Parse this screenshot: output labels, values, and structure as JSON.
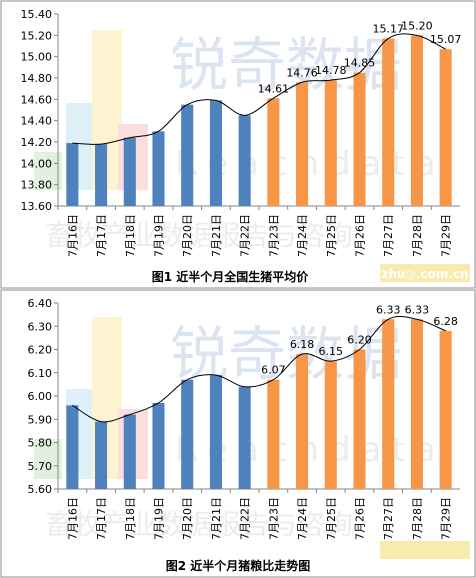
{
  "chart_data": [
    {
      "type": "bar",
      "title": "图1 近半个月全国生猪平均价",
      "categories": [
        "7月16日",
        "7月17日",
        "7月18日",
        "7月19日",
        "7月20日",
        "7月21日",
        "7月22日",
        "7月23日",
        "7月24日",
        "7月25日",
        "7月26日",
        "7月27日",
        "7月28日",
        "7月29日"
      ],
      "values": [
        14.19,
        14.18,
        14.24,
        14.3,
        14.55,
        14.59,
        14.45,
        14.61,
        14.76,
        14.78,
        14.85,
        15.17,
        15.2,
        15.07
      ],
      "data_labels": [
        "",
        "",
        "",
        "",
        "",
        "",
        "",
        "14.61",
        "14.76",
        "14.78",
        "14.85",
        "15.17",
        "15.20",
        "15.07"
      ],
      "yticks": [
        "13.60",
        "13.80",
        "14.00",
        "14.20",
        "14.40",
        "14.60",
        "14.80",
        "15.00",
        "15.20",
        "15.40"
      ],
      "ylim": [
        13.6,
        15.4
      ],
      "colors": {
        "old": "#4f81bd",
        "new": "#f79646",
        "trend": "#000000"
      },
      "grid": false,
      "watermark": "zhu◎.com.cn"
    },
    {
      "type": "bar",
      "title": "图2 近半个月猪粮比走势图",
      "categories": [
        "7月16日",
        "7月17日",
        "7月18日",
        "7月19日",
        "7月20日",
        "7月21日",
        "7月22日",
        "7月23日",
        "7月24日",
        "7月25日",
        "7月26日",
        "7月27日",
        "7月28日",
        "7月29日"
      ],
      "values": [
        5.96,
        5.89,
        5.92,
        5.97,
        6.07,
        6.09,
        6.04,
        6.07,
        6.18,
        6.15,
        6.2,
        6.33,
        6.33,
        6.28
      ],
      "data_labels": [
        "",
        "",
        "",
        "",
        "",
        "",
        "",
        "6.07",
        "6.18",
        "6.15",
        "6.20",
        "6.33",
        "6.33",
        "6.28"
      ],
      "yticks": [
        "5.60",
        "5.70",
        "5.80",
        "5.90",
        "6.00",
        "6.10",
        "6.20",
        "6.30",
        "6.40"
      ],
      "ylim": [
        5.6,
        6.4
      ],
      "colors": {
        "old": "#4f81bd",
        "new": "#f79646",
        "trend": "#000000"
      },
      "grid": false,
      "watermark": "zhu◎.com.cn"
    }
  ]
}
